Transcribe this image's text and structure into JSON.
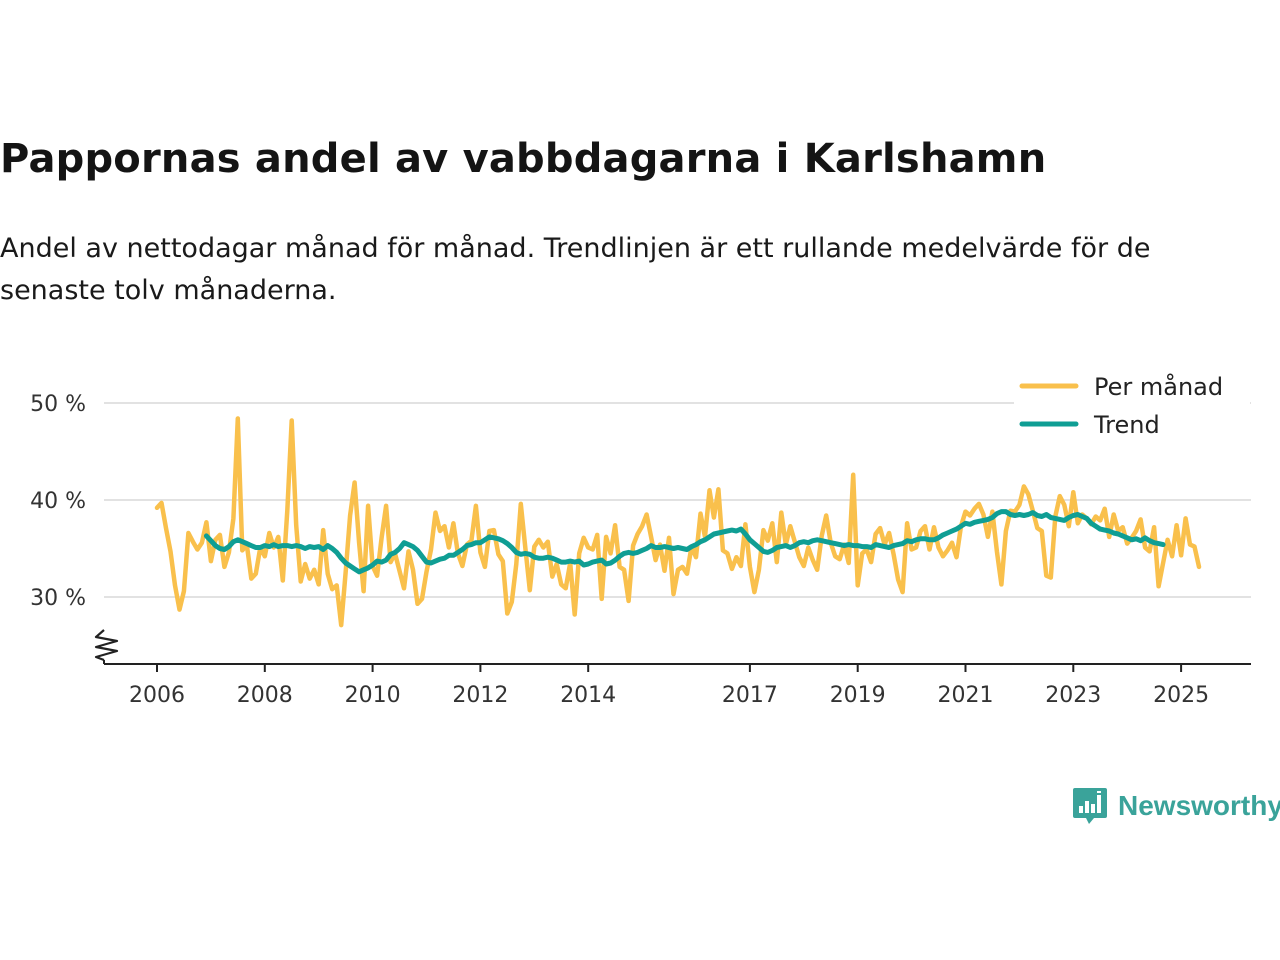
{
  "title": "Pappornas andel av vabbdagarna i Karlshamn",
  "subtitle": "Andel av nettodagar månad för månad. Trendlinjen är ett rullande medelvärde för de senaste tolv månaderna.",
  "brand": {
    "name": "Newsworthy",
    "icon": "newsworthy-logo-icon"
  },
  "colors": {
    "monthly": "#f9c04c",
    "trend": "#0f9e94",
    "grid": "#d9d9d9",
    "axis": "#222222"
  },
  "chart_data": {
    "type": "line",
    "title": "Pappornas andel av vabbdagarna i Karlshamn",
    "xlabel": "",
    "ylabel": "",
    "x_ticks": [
      2006,
      2008,
      2010,
      2012,
      2014,
      2017,
      2019,
      2021,
      2023,
      2025
    ],
    "x_tick_labels": [
      "2006",
      "2008",
      "2010",
      "2012",
      "2014",
      "2017",
      "2019",
      "2021",
      "2023",
      "2025"
    ],
    "y_ticks": [
      30,
      40,
      50
    ],
    "y_tick_labels": [
      "30 %",
      "40 %",
      "50 %"
    ],
    "ylim": [
      24,
      51
    ],
    "y_axis_broken": true,
    "legend": [
      "Per månad",
      "Trend"
    ],
    "legend_position": "top-right",
    "series": [
      {
        "name": "Per månad",
        "start_year": 2006,
        "step": 0.08333,
        "values": [
          39.2,
          39.7,
          37.1,
          34.7,
          31.2,
          28.7,
          30.6,
          36.6,
          35.7,
          34.9,
          35.6,
          37.7,
          33.7,
          35.9,
          36.4,
          33.1,
          34.6,
          38.1,
          48.4,
          34.8,
          35.4,
          31.9,
          32.4,
          35.1,
          34.2,
          36.6,
          35.1,
          36.2,
          31.7,
          38.9,
          48.2,
          37.4,
          31.6,
          33.4,
          31.9,
          32.8,
          31.3,
          36.9,
          32.4,
          30.8,
          31.2,
          27.1,
          32.5,
          38.4,
          41.8,
          35.6,
          30.6,
          39.4,
          33.2,
          32.2,
          36.1,
          39.4,
          33.6,
          34.5,
          32.7,
          30.9,
          34.7,
          32.8,
          29.3,
          29.8,
          32.6,
          34.9,
          38.7,
          36.8,
          37.3,
          35.1,
          37.6,
          34.5,
          33.2,
          35.4,
          35.8,
          39.4,
          34.6,
          33.1,
          36.8,
          36.9,
          34.4,
          33.7,
          28.3,
          29.5,
          33.4,
          39.6,
          35.1,
          30.7,
          35.2,
          35.9,
          35.1,
          35.7,
          32.1,
          33.4,
          31.3,
          30.9,
          33.5,
          28.2,
          34.5,
          36.1,
          35.1,
          34.9,
          36.4,
          29.8,
          36.2,
          34.5,
          37.4,
          33.1,
          32.8,
          29.6,
          35.3,
          36.5,
          37.3,
          38.5,
          36.2,
          33.8,
          35.4,
          32.7,
          36.1,
          30.3,
          32.8,
          33.1,
          32.4,
          35.2,
          34.1,
          38.6,
          36.2,
          41.0,
          38.2,
          41.1,
          34.8,
          34.5,
          32.9,
          34.1,
          33.2,
          37.5,
          33.1,
          30.5,
          32.8,
          36.9,
          35.8,
          37.6,
          33.6,
          38.7,
          35.4,
          37.3,
          35.7,
          34.1,
          33.2,
          35.1,
          33.8,
          32.8,
          36.3,
          38.4,
          35.6,
          34.2,
          33.9,
          35.4,
          33.5,
          42.6,
          31.2,
          34.5,
          34.9,
          33.6,
          36.5,
          37.1,
          35.4,
          36.6,
          34.4,
          31.8,
          30.5,
          37.6,
          34.9,
          35.1,
          36.8,
          37.3,
          34.9,
          37.2,
          35.1,
          34.2,
          34.8,
          35.6,
          34.1,
          37.3,
          38.8,
          38.4,
          39.1,
          39.6,
          38.5,
          36.2,
          38.8,
          34.7,
          31.3,
          36.8,
          38.9,
          38.8,
          39.5,
          41.4,
          40.6,
          38.9,
          37.1,
          36.8,
          32.2,
          32.0,
          38.3,
          40.4,
          39.5,
          37.3,
          40.8,
          37.6,
          38.5,
          38.1,
          37.5,
          38.3,
          37.9,
          39.1,
          36.2,
          38.5,
          36.8,
          37.2,
          35.5,
          36.1,
          36.8,
          38.0,
          35.1,
          34.7,
          37.2,
          31.1,
          33.5,
          35.9,
          34.2,
          37.4,
          34.3,
          38.1,
          35.4,
          35.2,
          33.1
        ]
      },
      {
        "name": "Trend",
        "start_year": 2006.917,
        "step": 0.08333,
        "values": [
          36.3,
          35.8,
          35.3,
          35.0,
          34.9,
          35.2,
          35.7,
          35.9,
          35.7,
          35.5,
          35.3,
          35.1,
          35.1,
          35.3,
          35.2,
          35.4,
          35.2,
          35.3,
          35.3,
          35.2,
          35.3,
          35.2,
          35.0,
          35.2,
          35.1,
          35.2,
          34.9,
          35.3,
          35.0,
          34.6,
          34.0,
          33.5,
          33.2,
          32.9,
          32.6,
          32.8,
          33.0,
          33.3,
          33.7,
          33.6,
          33.8,
          34.4,
          34.6,
          35.0,
          35.6,
          35.4,
          35.2,
          34.8,
          34.2,
          33.6,
          33.5,
          33.7,
          33.9,
          34.0,
          34.3,
          34.3,
          34.6,
          34.9,
          35.3,
          35.4,
          35.6,
          35.6,
          35.9,
          36.2,
          36.1,
          36.0,
          35.8,
          35.5,
          35.1,
          34.6,
          34.4,
          34.5,
          34.4,
          34.1,
          34.0,
          34.0,
          34.1,
          34.0,
          33.8,
          33.6,
          33.6,
          33.7,
          33.6,
          33.7,
          33.3,
          33.4,
          33.6,
          33.7,
          33.8,
          33.4,
          33.5,
          33.8,
          34.2,
          34.5,
          34.6,
          34.5,
          34.6,
          34.8,
          35.0,
          35.3,
          35.1,
          35.1,
          35.2,
          35.1,
          35.0,
          35.1,
          35.0,
          34.9,
          35.2,
          35.4,
          35.7,
          35.9,
          36.2,
          36.5,
          36.6,
          36.7,
          36.8,
          36.9,
          36.8,
          37.0,
          36.5,
          35.9,
          35.5,
          35.1,
          34.7,
          34.6,
          34.8,
          35.1,
          35.2,
          35.3,
          35.1,
          35.3,
          35.6,
          35.7,
          35.6,
          35.8,
          35.9,
          35.8,
          35.7,
          35.6,
          35.5,
          35.4,
          35.3,
          35.4,
          35.3,
          35.3,
          35.2,
          35.2,
          35.1,
          35.4,
          35.3,
          35.2,
          35.1,
          35.3,
          35.4,
          35.5,
          35.8,
          35.7,
          35.9,
          36.0,
          36.0,
          35.9,
          35.9,
          36.1,
          36.4,
          36.6,
          36.8,
          37.0,
          37.3,
          37.6,
          37.5,
          37.7,
          37.8,
          37.9,
          38.0,
          38.2,
          38.6,
          38.8,
          38.8,
          38.5,
          38.4,
          38.5,
          38.4,
          38.5,
          38.7,
          38.4,
          38.3,
          38.5,
          38.2,
          38.1,
          38.0,
          37.9,
          38.2,
          38.4,
          38.5,
          38.3,
          38.1,
          37.6,
          37.3,
          37.0,
          36.9,
          36.8,
          36.6,
          36.5,
          36.3,
          36.1,
          35.9,
          36.0,
          35.8,
          36.1,
          35.8,
          35.6,
          35.5,
          35.4
        ]
      }
    ]
  }
}
